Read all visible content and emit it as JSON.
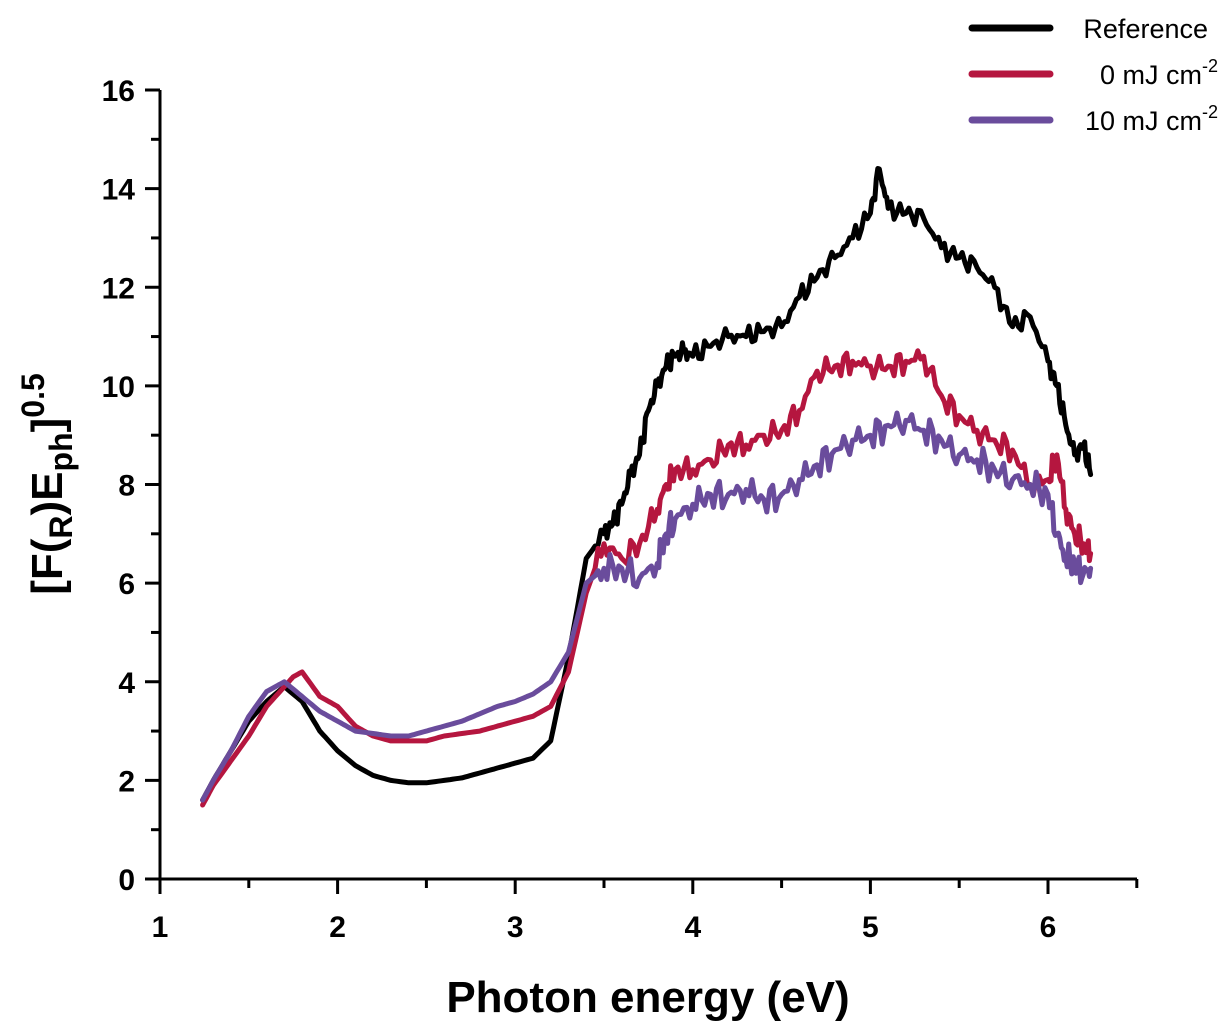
{
  "chart_data": {
    "type": "line",
    "xlabel": "Photon energy (eV)",
    "ylabel": {
      "base": "[F(",
      "sub1": "R",
      "mid": ")E",
      "sub2": "ph",
      "end": "]",
      "sup": "0.5"
    },
    "xlim": [
      1,
      6.5
    ],
    "ylim": [
      0,
      16
    ],
    "xticks": [
      1,
      2,
      3,
      4,
      5,
      6
    ],
    "yticks": [
      0,
      2,
      4,
      6,
      8,
      10,
      12,
      14,
      16
    ],
    "legend_position": "top-right",
    "grid": false,
    "series": [
      {
        "name": "Reference",
        "legend_text": "Reference",
        "legend_sup": "",
        "color": "#000000",
        "x": [
          1.24,
          1.3,
          1.4,
          1.5,
          1.6,
          1.7,
          1.8,
          1.9,
          2.0,
          2.1,
          2.2,
          2.3,
          2.4,
          2.5,
          2.6,
          2.7,
          2.8,
          2.9,
          3.0,
          3.1,
          3.2,
          3.3,
          3.4,
          3.5,
          3.55,
          3.6,
          3.65,
          3.7,
          3.75,
          3.8,
          3.85,
          3.9,
          3.95,
          4.0,
          4.1,
          4.2,
          4.3,
          4.4,
          4.5,
          4.6,
          4.7,
          4.8,
          4.9,
          5.0,
          5.05,
          5.1,
          5.2,
          5.3,
          5.4,
          5.5,
          5.6,
          5.7,
          5.8,
          5.9,
          6.0,
          6.05,
          6.1,
          6.15,
          6.2,
          6.24
        ],
        "y": [
          1.6,
          2.0,
          2.6,
          3.2,
          3.6,
          3.9,
          3.6,
          3.0,
          2.6,
          2.3,
          2.1,
          2.0,
          1.95,
          1.95,
          2.0,
          2.05,
          2.15,
          2.25,
          2.35,
          2.45,
          2.8,
          4.5,
          6.5,
          7.0,
          7.2,
          7.6,
          8.2,
          8.6,
          9.5,
          10.0,
          10.4,
          10.6,
          10.7,
          10.6,
          10.8,
          11.0,
          11.0,
          11.1,
          11.2,
          11.8,
          12.2,
          12.6,
          13.0,
          13.5,
          14.4,
          13.6,
          13.5,
          13.4,
          12.8,
          12.6,
          12.4,
          12.0,
          11.2,
          11.4,
          10.5,
          10.0,
          9.2,
          8.6,
          8.8,
          8.2
        ]
      },
      {
        "name": "0 mJ cm-2",
        "legend_text": "0 mJ cm",
        "legend_sup": "-2",
        "color": "#b5163f",
        "x": [
          1.24,
          1.3,
          1.4,
          1.5,
          1.6,
          1.7,
          1.75,
          1.8,
          1.9,
          2.0,
          2.1,
          2.2,
          2.3,
          2.4,
          2.5,
          2.6,
          2.7,
          2.8,
          2.9,
          3.0,
          3.1,
          3.2,
          3.3,
          3.4,
          3.5,
          3.6,
          3.7,
          3.8,
          3.85,
          3.9,
          4.0,
          4.1,
          4.2,
          4.3,
          4.4,
          4.5,
          4.6,
          4.7,
          4.8,
          4.9,
          5.0,
          5.1,
          5.2,
          5.3,
          5.4,
          5.5,
          5.6,
          5.7,
          5.8,
          5.9,
          6.0,
          6.05,
          6.1,
          6.15,
          6.2,
          6.24
        ],
        "y": [
          1.5,
          1.9,
          2.4,
          2.9,
          3.5,
          3.9,
          4.1,
          4.2,
          3.7,
          3.5,
          3.1,
          2.9,
          2.8,
          2.8,
          2.8,
          2.9,
          2.95,
          3.0,
          3.1,
          3.2,
          3.3,
          3.5,
          4.2,
          5.8,
          6.8,
          6.5,
          6.8,
          7.5,
          8.0,
          8.3,
          8.3,
          8.5,
          8.8,
          8.8,
          9.0,
          9.1,
          9.5,
          10.3,
          10.4,
          10.5,
          10.4,
          10.4,
          10.5,
          10.6,
          9.8,
          9.4,
          9.1,
          8.9,
          8.7,
          8.0,
          8.1,
          8.6,
          7.5,
          7.0,
          6.8,
          6.6
        ]
      },
      {
        "name": "10 mJ cm-2",
        "legend_text": "10 mJ cm",
        "legend_sup": "-2",
        "color": "#6a4c9c",
        "x": [
          1.24,
          1.3,
          1.4,
          1.5,
          1.6,
          1.7,
          1.8,
          1.9,
          2.0,
          2.1,
          2.2,
          2.3,
          2.4,
          2.5,
          2.6,
          2.7,
          2.8,
          2.9,
          3.0,
          3.1,
          3.2,
          3.3,
          3.4,
          3.5,
          3.6,
          3.7,
          3.8,
          3.85,
          3.9,
          4.0,
          4.1,
          4.2,
          4.3,
          4.4,
          4.5,
          4.6,
          4.7,
          4.8,
          4.9,
          5.0,
          5.1,
          5.2,
          5.3,
          5.4,
          5.5,
          5.6,
          5.7,
          5.8,
          5.9,
          6.0,
          6.05,
          6.1,
          6.15,
          6.2,
          6.24
        ],
        "y": [
          1.6,
          2.0,
          2.6,
          3.3,
          3.8,
          4.0,
          3.7,
          3.4,
          3.2,
          3.0,
          2.95,
          2.9,
          2.9,
          3.0,
          3.1,
          3.2,
          3.35,
          3.5,
          3.6,
          3.75,
          4.0,
          4.6,
          6.0,
          6.3,
          6.3,
          6.1,
          6.4,
          7.0,
          7.3,
          7.6,
          7.8,
          7.8,
          7.9,
          7.7,
          7.8,
          8.1,
          8.4,
          8.7,
          8.9,
          9.0,
          9.2,
          9.3,
          9.1,
          8.9,
          8.6,
          8.5,
          8.3,
          8.1,
          8.0,
          7.8,
          7.0,
          6.5,
          6.4,
          6.2,
          6.3
        ]
      }
    ]
  }
}
